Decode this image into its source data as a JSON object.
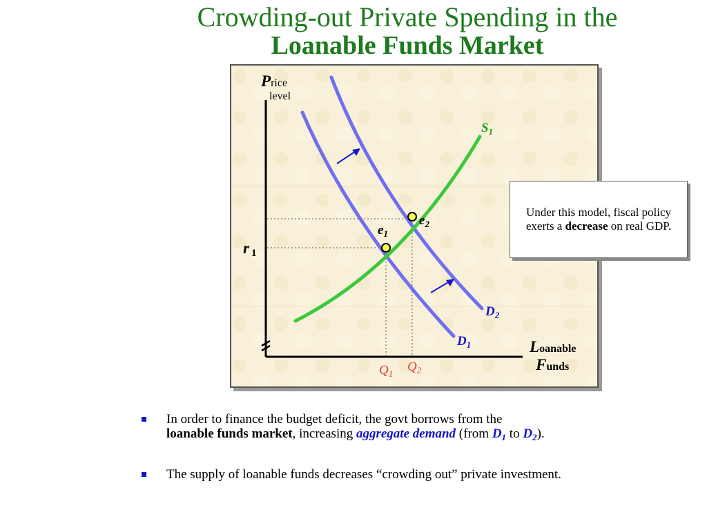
{
  "title": {
    "line1": "Crowding-out Private Spending in the",
    "line2": "Loanable Funds Market"
  },
  "graph": {
    "y_axis_label": {
      "big": "P",
      "rest": "rice",
      "line2": "level"
    },
    "x_axis_label": {
      "line1_big": "L",
      "line1_rest": "oanable",
      "line2_big": "F",
      "line2_rest": "unds"
    },
    "r_label": {
      "letter": "r",
      "sub": "1"
    },
    "curves": {
      "s1": {
        "letter": "S",
        "sub": "1",
        "color": "#3cc83c"
      },
      "d1": {
        "letter": "D",
        "sub": "1",
        "color": "#6f6ff2"
      },
      "d2": {
        "letter": "D",
        "sub": "2",
        "color": "#6f6ff2"
      }
    },
    "points": {
      "e1": {
        "letter": "e",
        "sub": "1"
      },
      "e2": {
        "letter": "e",
        "sub": "2"
      }
    },
    "quantities": {
      "q1": {
        "letter": "Q",
        "sub": "1",
        "color": "#e83a3a"
      },
      "q2": {
        "letter": "Q",
        "sub": "2",
        "color": "#e83a3a"
      }
    }
  },
  "callout": {
    "text_before": "Under this model, fiscal policy exerts a",
    "bold": "decrease",
    "text_after": "on real GDP."
  },
  "bullets": [
    {
      "part1": "In order to finance the budget deficit, the govt borrows from the",
      "bold": "loanable funds market",
      "part2": ", increasing",
      "ad": "aggregate demand",
      "part3": "(from",
      "d1_letter": "D",
      "d1_sub": "1",
      "part4": "to",
      "d2_letter": "D",
      "d2_sub": "2",
      "part5": ")."
    },
    {
      "text": "The supply of loanable funds decreases “crowding out” private investment."
    }
  ],
  "colors": {
    "title": "#1e7a1e",
    "supply": "#3cc83c",
    "demand": "#6f6ff2",
    "quantity": "#e83a3a",
    "bullet": "#1515c8"
  }
}
